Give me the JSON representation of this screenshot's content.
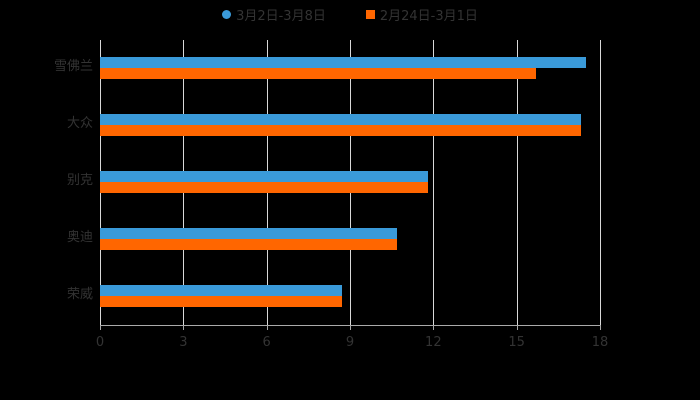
{
  "chart_data": {
    "type": "bar",
    "orientation": "horizontal",
    "categories": [
      "雪佛兰",
      "大众",
      "别克",
      "奥迪",
      "荣威"
    ],
    "series": [
      {
        "name": "3月2日-3月8日",
        "color": "#3a9ad9",
        "values": [
          17.5,
          17.3,
          11.8,
          10.7,
          8.7
        ]
      },
      {
        "name": "2月24日-3月1日",
        "color": "#ff6600",
        "values": [
          15.7,
          17.3,
          11.8,
          10.7,
          8.7
        ]
      }
    ],
    "title": "",
    "xlabel": "",
    "ylabel": "",
    "xlim": [
      0,
      18
    ],
    "xticks": [
      "0",
      "3",
      "6",
      "9",
      "12",
      "15",
      "18"
    ],
    "grid": true,
    "legend_position": "top"
  },
  "legend": {
    "series1": "3月2日-3月8日",
    "series2": "2月24日-3月1日"
  }
}
